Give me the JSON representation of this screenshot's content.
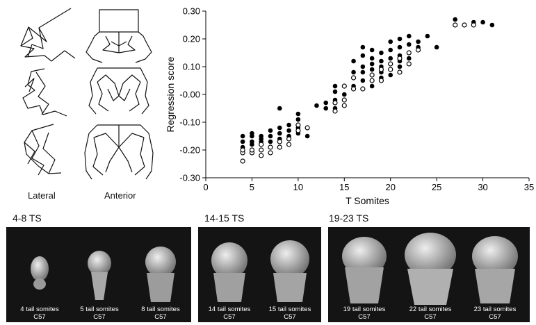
{
  "wireframes": {
    "lateral_label": "Lateral",
    "anterior_label": "Anterior"
  },
  "chart_data": {
    "type": "scatter",
    "xlabel": "T Somites",
    "ylabel": "Regression score",
    "xlim": [
      0,
      35
    ],
    "ylim": [
      -0.3,
      0.3
    ],
    "x_ticks": [
      "0",
      "5",
      "10",
      "15",
      "20",
      "25",
      "30",
      "35"
    ],
    "y_ticks": [
      "0.30",
      "0.20",
      "0.10",
      "-0.00",
      "-0.10",
      "-0.20",
      "-0.30"
    ],
    "grid": false,
    "series": [
      {
        "marker": "filled",
        "points": [
          [
            4,
            -0.15
          ],
          [
            4,
            -0.17
          ],
          [
            4,
            -0.19
          ],
          [
            5,
            -0.14
          ],
          [
            5,
            -0.15
          ],
          [
            5,
            -0.17
          ],
          [
            5,
            -0.18
          ],
          [
            6,
            -0.15
          ],
          [
            6,
            -0.16
          ],
          [
            6,
            -0.17
          ],
          [
            7,
            -0.13
          ],
          [
            7,
            -0.15
          ],
          [
            7,
            -0.17
          ],
          [
            8,
            -0.05
          ],
          [
            8,
            -0.12
          ],
          [
            8,
            -0.14
          ],
          [
            8,
            -0.16
          ],
          [
            9,
            -0.11
          ],
          [
            9,
            -0.13
          ],
          [
            9,
            -0.15
          ],
          [
            10,
            -0.07
          ],
          [
            10,
            -0.09
          ],
          [
            10,
            -0.11
          ],
          [
            10,
            -0.12
          ],
          [
            10,
            -0.14
          ],
          [
            11,
            -0.15
          ],
          [
            12,
            -0.04
          ],
          [
            13,
            -0.03
          ],
          [
            13,
            -0.05
          ],
          [
            14,
            0.03
          ],
          [
            14,
            0.01
          ],
          [
            14,
            -0.02
          ],
          [
            14,
            -0.05
          ],
          [
            15,
            0.0
          ],
          [
            16,
            0.12
          ],
          [
            16,
            0.08
          ],
          [
            16,
            0.03
          ],
          [
            17,
            0.17
          ],
          [
            17,
            0.14
          ],
          [
            17,
            0.1
          ],
          [
            17,
            0.08
          ],
          [
            17,
            0.05
          ],
          [
            18,
            0.16
          ],
          [
            18,
            0.13
          ],
          [
            18,
            0.11
          ],
          [
            18,
            0.09
          ],
          [
            18,
            0.07
          ],
          [
            18,
            0.03
          ],
          [
            19,
            0.15
          ],
          [
            19,
            0.12
          ],
          [
            19,
            0.1
          ],
          [
            19,
            0.08
          ],
          [
            19,
            0.06
          ],
          [
            20,
            0.19
          ],
          [
            20,
            0.16
          ],
          [
            20,
            0.13
          ],
          [
            20,
            0.11
          ],
          [
            20,
            0.09
          ],
          [
            20,
            0.07
          ],
          [
            21,
            0.2
          ],
          [
            21,
            0.17
          ],
          [
            21,
            0.14
          ],
          [
            21,
            0.12
          ],
          [
            21,
            0.1
          ],
          [
            22,
            0.21
          ],
          [
            22,
            0.18
          ],
          [
            22,
            0.15
          ],
          [
            22,
            0.13
          ],
          [
            23,
            0.19
          ],
          [
            23,
            0.17
          ],
          [
            24,
            0.21
          ],
          [
            25,
            0.17
          ],
          [
            27,
            0.27
          ],
          [
            27,
            0.25
          ],
          [
            29,
            0.26
          ],
          [
            30,
            0.26
          ],
          [
            31,
            0.25
          ]
        ]
      },
      {
        "marker": "open",
        "points": [
          [
            4,
            -0.24
          ],
          [
            4,
            -0.21
          ],
          [
            4,
            -0.2
          ],
          [
            5,
            -0.21
          ],
          [
            5,
            -0.2
          ],
          [
            6,
            -0.22
          ],
          [
            6,
            -0.2
          ],
          [
            6,
            -0.18
          ],
          [
            7,
            -0.21
          ],
          [
            7,
            -0.19
          ],
          [
            8,
            -0.19
          ],
          [
            8,
            -0.17
          ],
          [
            9,
            -0.18
          ],
          [
            9,
            -0.16
          ],
          [
            10,
            -0.13
          ],
          [
            10,
            -0.11
          ],
          [
            11,
            -0.12
          ],
          [
            14,
            -0.06
          ],
          [
            14,
            -0.03
          ],
          [
            15,
            0.03
          ],
          [
            15,
            -0.02
          ],
          [
            15,
            -0.04
          ],
          [
            16,
            0.02
          ],
          [
            16,
            0.06
          ],
          [
            17,
            0.02
          ],
          [
            18,
            0.05
          ],
          [
            18,
            0.07
          ],
          [
            19,
            0.05
          ],
          [
            19,
            0.09
          ],
          [
            20,
            0.11
          ],
          [
            20,
            0.09
          ],
          [
            21,
            0.08
          ],
          [
            21,
            0.13
          ],
          [
            22,
            0.11
          ],
          [
            22,
            0.15
          ],
          [
            23,
            0.16
          ],
          [
            27,
            0.25
          ],
          [
            28,
            0.25
          ],
          [
            29,
            0.25
          ]
        ]
      }
    ]
  },
  "embryo_groups": [
    {
      "title": "4-8 TS",
      "items": [
        {
          "caption": "4 tail somites",
          "strain": "C57"
        },
        {
          "caption": "5 tail somites",
          "strain": "C57"
        },
        {
          "caption": "8 tail somites",
          "strain": "C57"
        }
      ]
    },
    {
      "title": "14-15 TS",
      "items": [
        {
          "caption": "14 tail somites",
          "strain": "C57"
        },
        {
          "caption": "15 tail somites",
          "strain": "C57"
        }
      ]
    },
    {
      "title": "19-23 TS",
      "items": [
        {
          "caption": "19 tail somites",
          "strain": "C57"
        },
        {
          "caption": "22 tail somites",
          "strain": "C57"
        },
        {
          "caption": "23 tail somites",
          "strain": "C57"
        }
      ]
    }
  ]
}
